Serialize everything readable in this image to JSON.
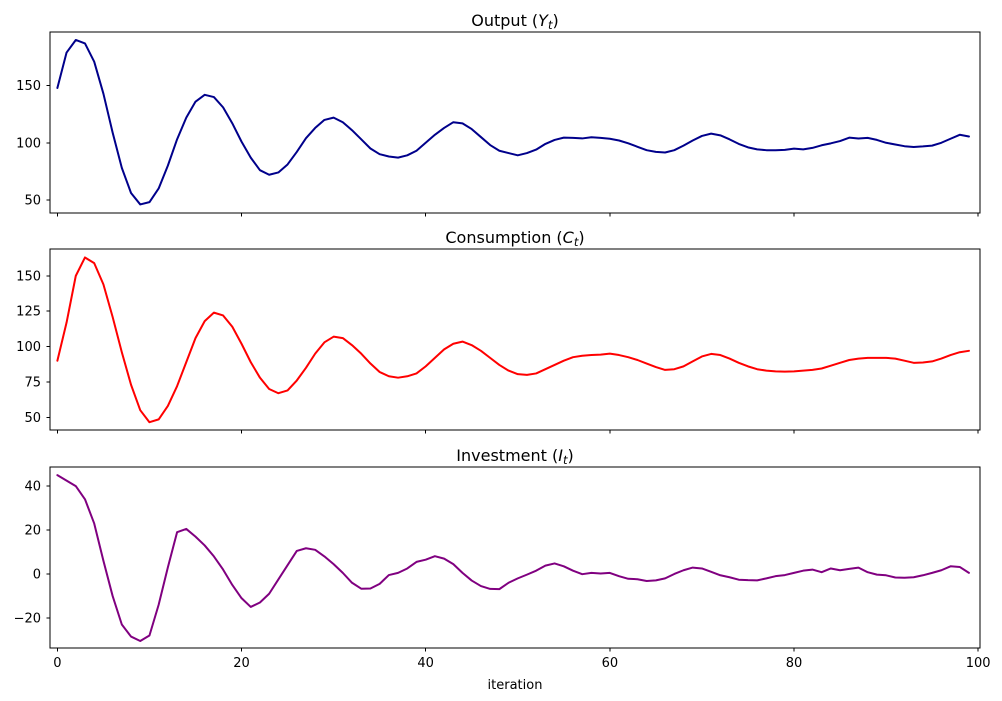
{
  "figure": {
    "background": "#ffffff",
    "frame_color": "#000000",
    "tick_color": "#000000"
  },
  "chart_data": {
    "type": "line",
    "xlabel": "iteration",
    "xlim": [
      -0.8,
      100.2
    ],
    "xticks": [
      0,
      20,
      40,
      60,
      80,
      100
    ],
    "grid": false,
    "legend": "none",
    "x": [
      0,
      1,
      2,
      3,
      4,
      5,
      6,
      7,
      8,
      9,
      10,
      11,
      12,
      13,
      14,
      15,
      16,
      17,
      18,
      19,
      20,
      21,
      22,
      23,
      24,
      25,
      26,
      27,
      28,
      29,
      30,
      31,
      32,
      33,
      34,
      35,
      36,
      37,
      38,
      39,
      40,
      41,
      42,
      43,
      44,
      45,
      46,
      47,
      48,
      49,
      50,
      51,
      52,
      53,
      54,
      55,
      56,
      57,
      58,
      59,
      60,
      61,
      62,
      63,
      64,
      65,
      66,
      67,
      68,
      69,
      70,
      71,
      72,
      73,
      74,
      75,
      76,
      77,
      78,
      79,
      80,
      81,
      82,
      83,
      84,
      85,
      86,
      87,
      88,
      89,
      90,
      91,
      92,
      93,
      94,
      95,
      96,
      97,
      98,
      99
    ],
    "subplots": [
      {
        "key": "output",
        "title": "Output (Y_t)",
        "title_parts": [
          {
            "text": "Output (",
            "style": "normal"
          },
          {
            "text": "Y",
            "style": "italic"
          },
          {
            "text": "t",
            "style": "sub-italic"
          },
          {
            "text": ")",
            "style": "normal"
          }
        ],
        "color": "#00008b",
        "ylim": [
          38.5,
          197
        ],
        "yticks": [
          50,
          100,
          150
        ],
        "values": [
          148,
          179,
          190,
          187,
          171,
          143,
          109,
          78,
          56,
          46,
          48,
          60,
          80,
          103,
          122,
          136,
          142,
          140,
          131,
          117,
          101,
          87,
          76,
          72,
          74,
          81,
          92,
          104,
          113,
          120,
          122,
          118,
          111,
          103,
          95,
          90,
          88,
          87,
          89,
          93,
          100,
          107,
          113,
          118,
          117,
          112,
          105,
          98,
          93,
          91,
          89,
          91,
          94,
          99,
          102.5,
          104.5,
          104.3,
          103.8,
          104.8,
          104.3,
          103.5,
          102,
          99.5,
          96.5,
          93.5,
          92,
          91.5,
          93.5,
          97.5,
          102,
          106,
          108,
          106.5,
          103,
          99,
          96,
          94.2,
          93.5,
          93.4,
          93.8,
          94.9,
          94.2,
          95.5,
          97.8,
          99.5,
          101.5,
          104.5,
          103.7,
          104.3,
          102.5,
          100,
          98.5,
          97,
          96.3,
          96.8,
          97.5,
          100,
          103.5,
          107,
          105.5
        ]
      },
      {
        "key": "consumption",
        "title": "Consumption (C_t)",
        "title_parts": [
          {
            "text": "Consumption (",
            "style": "normal"
          },
          {
            "text": "C",
            "style": "italic"
          },
          {
            "text": "t",
            "style": "sub-italic"
          },
          {
            "text": ")",
            "style": "normal"
          }
        ],
        "color": "#ff0000",
        "ylim": [
          41,
          169
        ],
        "yticks": [
          50,
          75,
          100,
          125,
          150
        ],
        "values": [
          90,
          117,
          150,
          163,
          159,
          144,
          121,
          96,
          73,
          55,
          46.5,
          48.5,
          58,
          72,
          89,
          106,
          118,
          124,
          122,
          114,
          102,
          89,
          78,
          70,
          67,
          69,
          76,
          85,
          95,
          103,
          107,
          106,
          101,
          95,
          88,
          82,
          79,
          78,
          79,
          81,
          86,
          92,
          98,
          102,
          103.5,
          101,
          97,
          92,
          87,
          83,
          80.5,
          80,
          81,
          84,
          87,
          90,
          92.5,
          93.5,
          94,
          94.3,
          95,
          94,
          92.5,
          90.5,
          88,
          85.5,
          83.5,
          84,
          86,
          89.5,
          93,
          94.8,
          94,
          91.5,
          88.5,
          86,
          84,
          83,
          82.5,
          82.3,
          82.5,
          83,
          83.5,
          84.5,
          86.5,
          88.5,
          90.5,
          91.5,
          92,
          92,
          92,
          91.5,
          90,
          88.5,
          88.7,
          89.5,
          91.5,
          94,
          96,
          97
        ]
      },
      {
        "key": "investment",
        "title": "Investment (I_t)",
        "title_parts": [
          {
            "text": "Investment (",
            "style": "normal"
          },
          {
            "text": "I",
            "style": "italic"
          },
          {
            "text": "t",
            "style": "sub-italic"
          },
          {
            "text": ")",
            "style": "normal"
          }
        ],
        "color": "#800080",
        "ylim": [
          -33.7,
          48.7
        ],
        "yticks": [
          -20,
          0,
          20,
          40
        ],
        "values": [
          45,
          42.5,
          40,
          34,
          23,
          6,
          -10,
          -23,
          -28.5,
          -30.5,
          -28,
          -14,
          3,
          19,
          20.5,
          17,
          13,
          8,
          2,
          -5,
          -11,
          -15,
          -13,
          -9,
          -2.5,
          4,
          10.5,
          11.7,
          11,
          8,
          4.5,
          0.5,
          -4,
          -6.7,
          -6.6,
          -4.5,
          -0.5,
          0.5,
          2.5,
          5.5,
          6.5,
          8.1,
          7,
          4.5,
          0.5,
          -3,
          -5.5,
          -6.8,
          -6.9,
          -4,
          -2,
          -0.3,
          1.5,
          3.8,
          4.8,
          3.5,
          1.5,
          -0.1,
          0.5,
          0.2,
          0.5,
          -1,
          -2.2,
          -2.4,
          -3.2,
          -2.9,
          -2,
          0,
          1.7,
          2.9,
          2.5,
          1,
          -0.6,
          -1.5,
          -2.6,
          -2.8,
          -2.9,
          -2,
          -1,
          -0.5,
          0.5,
          1.5,
          2,
          0.8,
          2.5,
          1.7,
          2.3,
          2.9,
          0.8,
          -0.3,
          -0.6,
          -1.6,
          -1.7,
          -1.5,
          -0.6,
          0.5,
          1.7,
          3.5,
          3.2,
          0.5
        ]
      }
    ]
  }
}
